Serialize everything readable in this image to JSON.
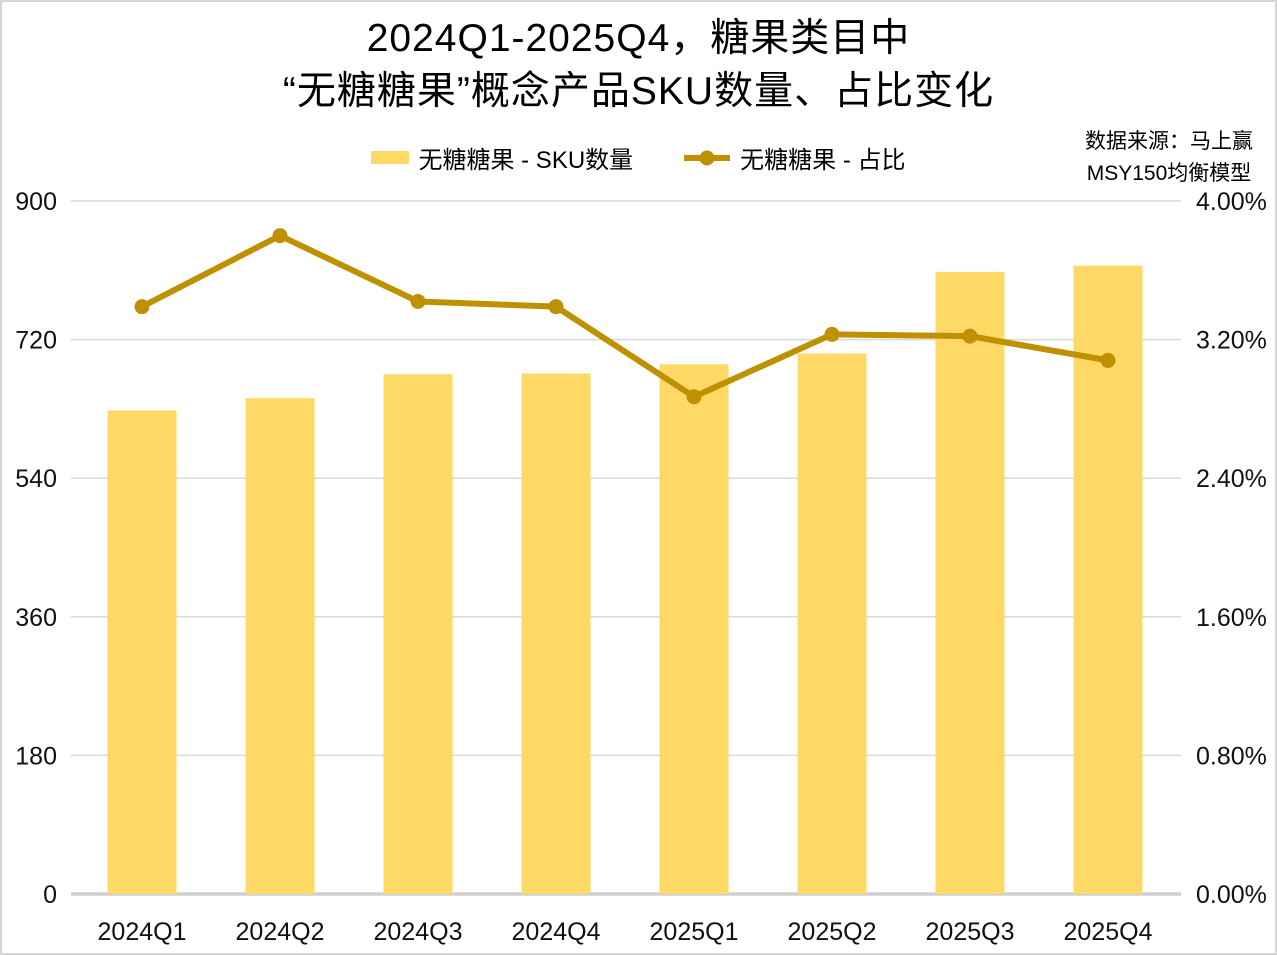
{
  "title": {
    "line1": "2024Q1-2025Q4，糖果类目中",
    "line2": "“无糖糖果”概念产品SKU数量、占比变化"
  },
  "source_note": {
    "line1": "数据来源：马上赢",
    "line2": "MSY150均衡模型"
  },
  "legend": {
    "position": "top",
    "items": [
      {
        "label": "无糖糖果 - SKU数量",
        "marker": "bar-swatch",
        "color": "#FFD966"
      },
      {
        "label": "无糖糖果 - 占比",
        "marker": "line-dot-swatch",
        "color": "#BF9000"
      }
    ]
  },
  "palette": {
    "bar": "#FFD966",
    "line": "#BF9000",
    "grid": "#D9D9D9",
    "axis": "#CFCFCF",
    "text": "#111111",
    "frame": "#D5D5D5",
    "background": "#FFFFFF"
  },
  "chart_data": {
    "type": "bar+line combo",
    "categories": [
      "2024Q1",
      "2024Q2",
      "2024Q3",
      "2024Q4",
      "2025Q1",
      "2025Q2",
      "2025Q3",
      "2025Q4"
    ],
    "series": [
      {
        "name": "无糖糖果 - SKU数量",
        "type": "bar",
        "axis": "left",
        "color": "#FFD966",
        "values": [
          628,
          644,
          675,
          676,
          688,
          702,
          808,
          816
        ]
      },
      {
        "name": "无糖糖果 - 占比",
        "type": "line",
        "axis": "right",
        "color": "#BF9000",
        "unit": "%",
        "values": [
          3.39,
          3.8,
          3.42,
          3.39,
          2.87,
          3.23,
          3.22,
          3.08
        ]
      }
    ],
    "left_axis": {
      "min": 0,
      "max": 900,
      "ticks": [
        0,
        180,
        360,
        540,
        720,
        900
      ],
      "tick_labels": [
        "0",
        "180",
        "360",
        "540",
        "720",
        "900"
      ]
    },
    "right_axis": {
      "min": 0,
      "max": 4,
      "ticks": [
        0.0,
        0.8,
        1.6,
        2.4,
        3.2,
        4.0
      ],
      "tick_labels": [
        "0.00%",
        "0.80%",
        "1.60%",
        "2.40%",
        "3.20%",
        "4.00%"
      ]
    },
    "grid": "horizontal",
    "legend_position": "top",
    "title": "2024Q1-2025Q4，糖果类目中 “无糖糖果”概念产品SKU数量、占比变化",
    "xlabel": "",
    "ylabel": ""
  }
}
